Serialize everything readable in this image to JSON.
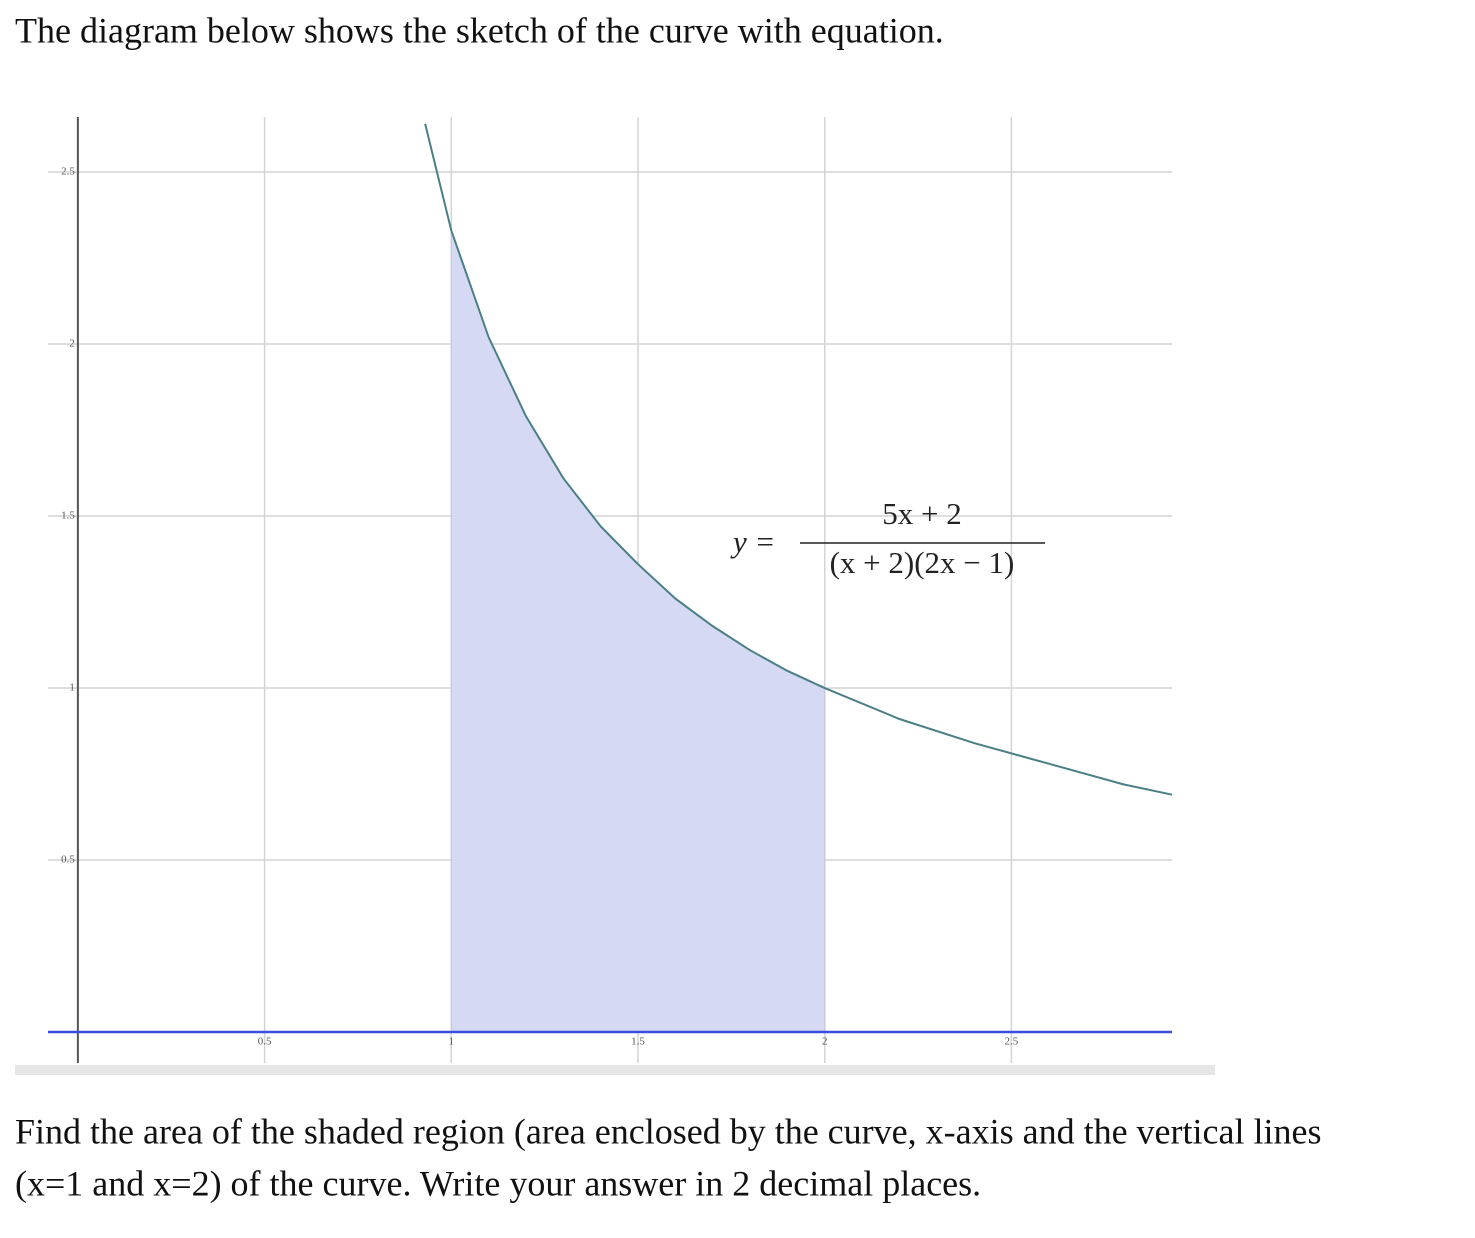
{
  "intro": "The diagram below shows the sketch of the curve with equation.",
  "chart_data": {
    "type": "line",
    "annotation": {
      "lhs": "y =",
      "numerator": "5x + 2",
      "denominator": "(x + 2)(2x − 1)"
    },
    "x": [
      0.93,
      1.0,
      1.1,
      1.2,
      1.3,
      1.4,
      1.5,
      1.6,
      1.7,
      1.8,
      1.9,
      2.0,
      2.2,
      2.4,
      2.6,
      2.8,
      2.93
    ],
    "series": [
      {
        "color": "#4a7f86",
        "values": [
          2.64,
          2.33,
          2.02,
          1.79,
          1.61,
          1.47,
          1.36,
          1.26,
          1.18,
          1.11,
          1.05,
          1.0,
          0.91,
          0.84,
          0.78,
          0.72,
          0.69
        ]
      }
    ],
    "shade": [
      1,
      2
    ],
    "shade_color": "#d6d9f3",
    "x_axis_color": "#3a4fe0",
    "xlim": [
      -0.08,
      2.93
    ],
    "ylim": [
      -0.09,
      2.66
    ],
    "xticks": [
      0.5,
      1,
      1.5,
      2,
      2.5
    ],
    "yticks": [
      0.5,
      1,
      1.5,
      2,
      2.5
    ],
    "grid": true
  },
  "question": [
    "Find the area of the shaded region (area enclosed by the curve, x-axis and the vertical lines",
    "(x=1 and x=2) of the curve. Write your answer in 2 decimal places."
  ]
}
